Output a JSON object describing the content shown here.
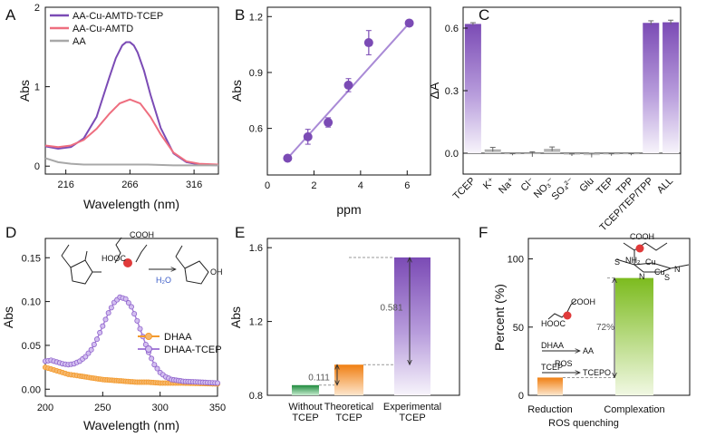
{
  "colors": {
    "purple": "#7b4bb5",
    "pink": "#ee6e7f",
    "gray": "#a8a8a8",
    "orange": "#f39a2d",
    "green": "#2e9a4a",
    "lime": "#86c02c",
    "red_dot": "#e03a3a",
    "text": "#111111"
  },
  "chart_data": [
    {
      "panel": "A",
      "type": "line",
      "xlabel": "Wavelength (nm)",
      "ylabel": "Abs",
      "xlim": [
        200,
        335
      ],
      "ylim": [
        -0.1,
        2
      ],
      "xticks": [
        "216",
        "266",
        "316"
      ],
      "yticks": [
        "0",
        "1",
        "2"
      ],
      "legend": [
        "AA-Cu-AMTD-TCEP",
        "AA-Cu-AMTD",
        "AA"
      ],
      "series": [
        {
          "name": "AA-Cu-AMTD-TCEP",
          "color": "#7b4bb5",
          "x": [
            200,
            210,
            220,
            230,
            240,
            250,
            255,
            260,
            263,
            266,
            269,
            272,
            277,
            282,
            290,
            300,
            310,
            320,
            335
          ],
          "y": [
            0.25,
            0.22,
            0.24,
            0.35,
            0.62,
            1.12,
            1.36,
            1.52,
            1.56,
            1.56,
            1.52,
            1.43,
            1.2,
            0.9,
            0.48,
            0.16,
            0.05,
            0.02,
            0.01
          ]
        },
        {
          "name": "AA-Cu-AMTD",
          "color": "#ee6e7f",
          "x": [
            200,
            210,
            220,
            230,
            240,
            250,
            258,
            266,
            274,
            282,
            290,
            300,
            310,
            320,
            335
          ],
          "y": [
            0.26,
            0.24,
            0.26,
            0.33,
            0.47,
            0.66,
            0.79,
            0.84,
            0.79,
            0.62,
            0.4,
            0.17,
            0.06,
            0.03,
            0.02
          ]
        },
        {
          "name": "AA",
          "color": "#a8a8a8",
          "x": [
            200,
            210,
            220,
            230,
            240,
            260,
            280,
            300,
            335
          ],
          "y": [
            0.1,
            0.05,
            0.03,
            0.02,
            0.02,
            0.02,
            0.02,
            0.01,
            0.01
          ]
        }
      ]
    },
    {
      "panel": "B",
      "type": "scatter",
      "xlabel": "ppm",
      "ylabel": "Abs",
      "xlim": [
        0,
        7
      ],
      "ylim": [
        0.35,
        1.25
      ],
      "xticks": [
        "0",
        "2",
        "4",
        "6"
      ],
      "yticks": [
        "0.6",
        "0.9",
        "1.2"
      ],
      "x": [
        0.87,
        1.74,
        2.61,
        3.48,
        4.35,
        6.09
      ],
      "y": [
        0.44,
        0.555,
        0.632,
        0.832,
        1.06,
        1.165
      ],
      "err": [
        0.01,
        0.04,
        0.025,
        0.035,
        0.065,
        0.01
      ],
      "fit": {
        "x": [
          0.87,
          6.09
        ],
        "y": [
          0.44,
          1.165
        ]
      }
    },
    {
      "panel": "C",
      "type": "bar",
      "ylabel": "ΔA",
      "ylim": [
        -0.1,
        0.7
      ],
      "yticks": [
        "0.0",
        "0.3",
        "0.6"
      ],
      "categories": [
        "TCEP",
        "K⁺",
        "Na⁺",
        "Cl⁻",
        "NO₃⁻",
        "SO₄²⁻",
        "Glu",
        "TEP",
        "TPP",
        "TCEP/TEP/TPP",
        "ALL"
      ],
      "values": [
        0.62,
        0.018,
        -0.006,
        -0.005,
        0.02,
        -0.008,
        -0.01,
        -0.007,
        -0.006,
        0.625,
        0.628
      ],
      "err": [
        0.006,
        0.01,
        0.004,
        0.012,
        0.01,
        0.005,
        0.01,
        0.005,
        0.004,
        0.01,
        0.01
      ]
    },
    {
      "panel": "D",
      "type": "line",
      "xlabel": "Wavelength (nm)",
      "ylabel": "Abs",
      "xlim": [
        200,
        350
      ],
      "ylim": [
        -0.008,
        0.172
      ],
      "xticks": [
        "200",
        "250",
        "300",
        "350"
      ],
      "yticks": [
        "0.00",
        "0.05",
        "0.10",
        "0.15"
      ],
      "legend": [
        "DHAA",
        "DHAA-TCEP"
      ],
      "reaction": {
        "reagent": "H₂O",
        "label_cooh": "COOH",
        "label_hooc": "HOOC",
        "label_oh": "OH"
      },
      "series": [
        {
          "name": "DHAA",
          "color": "#f39a2d",
          "x": [
            200,
            205,
            210,
            215,
            220,
            225,
            230,
            240,
            250,
            260,
            270,
            280,
            290,
            300,
            320,
            350
          ],
          "y": [
            0.025,
            0.023,
            0.021,
            0.019,
            0.017,
            0.016,
            0.015,
            0.013,
            0.011,
            0.01,
            0.009,
            0.008,
            0.008,
            0.007,
            0.007,
            0.006
          ]
        },
        {
          "name": "DHAA-TCEP",
          "color": "#a67fd8",
          "x": [
            200,
            205,
            210,
            215,
            220,
            225,
            230,
            235,
            240,
            245,
            250,
            255,
            260,
            265,
            270,
            275,
            280,
            285,
            290,
            295,
            300,
            305,
            310,
            320,
            335,
            350
          ],
          "y": [
            0.032,
            0.033,
            0.031,
            0.029,
            0.028,
            0.029,
            0.032,
            0.037,
            0.045,
            0.057,
            0.072,
            0.087,
            0.099,
            0.105,
            0.103,
            0.094,
            0.078,
            0.06,
            0.042,
            0.028,
            0.019,
            0.014,
            0.011,
            0.009,
            0.008,
            0.007
          ]
        }
      ]
    },
    {
      "panel": "E",
      "type": "bar",
      "ylabel": "Abs",
      "ylim": [
        0.8,
        1.65
      ],
      "yticks": [
        "0.8",
        "1.2",
        "1.6"
      ],
      "categories": [
        "Without TCEP",
        "Theoretical TCEP",
        "Experimental TCEP"
      ],
      "category_lines": [
        [
          "Without",
          "TCEP"
        ],
        [
          "Theoretical",
          "TCEP"
        ],
        [
          "Experimental",
          "TCEP"
        ]
      ],
      "values": [
        0.855,
        0.966,
        1.547
      ],
      "annotations": [
        "0.111",
        "0.581"
      ]
    },
    {
      "panel": "F",
      "type": "bar",
      "ylabel": "Percent (%)",
      "ylim": [
        0,
        115
      ],
      "yticks": [
        "0",
        "50",
        "100"
      ],
      "categories": [
        "Reduction",
        "Complexation"
      ],
      "values": [
        13,
        86
      ],
      "xlabel": "ROS quenching",
      "annotations": [
        "72%"
      ],
      "inset": {
        "l1a": "DHAA",
        "l1b": "AA",
        "l2a": "TCEP",
        "l2b": "TCEPO",
        "l2mid": "ROS",
        "cooh": "COOH",
        "hooc": "HOOC",
        "nh2": "NH₂",
        "cu": "Cu",
        "s": "S",
        "n": "N"
      }
    }
  ],
  "panel_labels": [
    "A",
    "B",
    "C",
    "D",
    "E",
    "F"
  ]
}
